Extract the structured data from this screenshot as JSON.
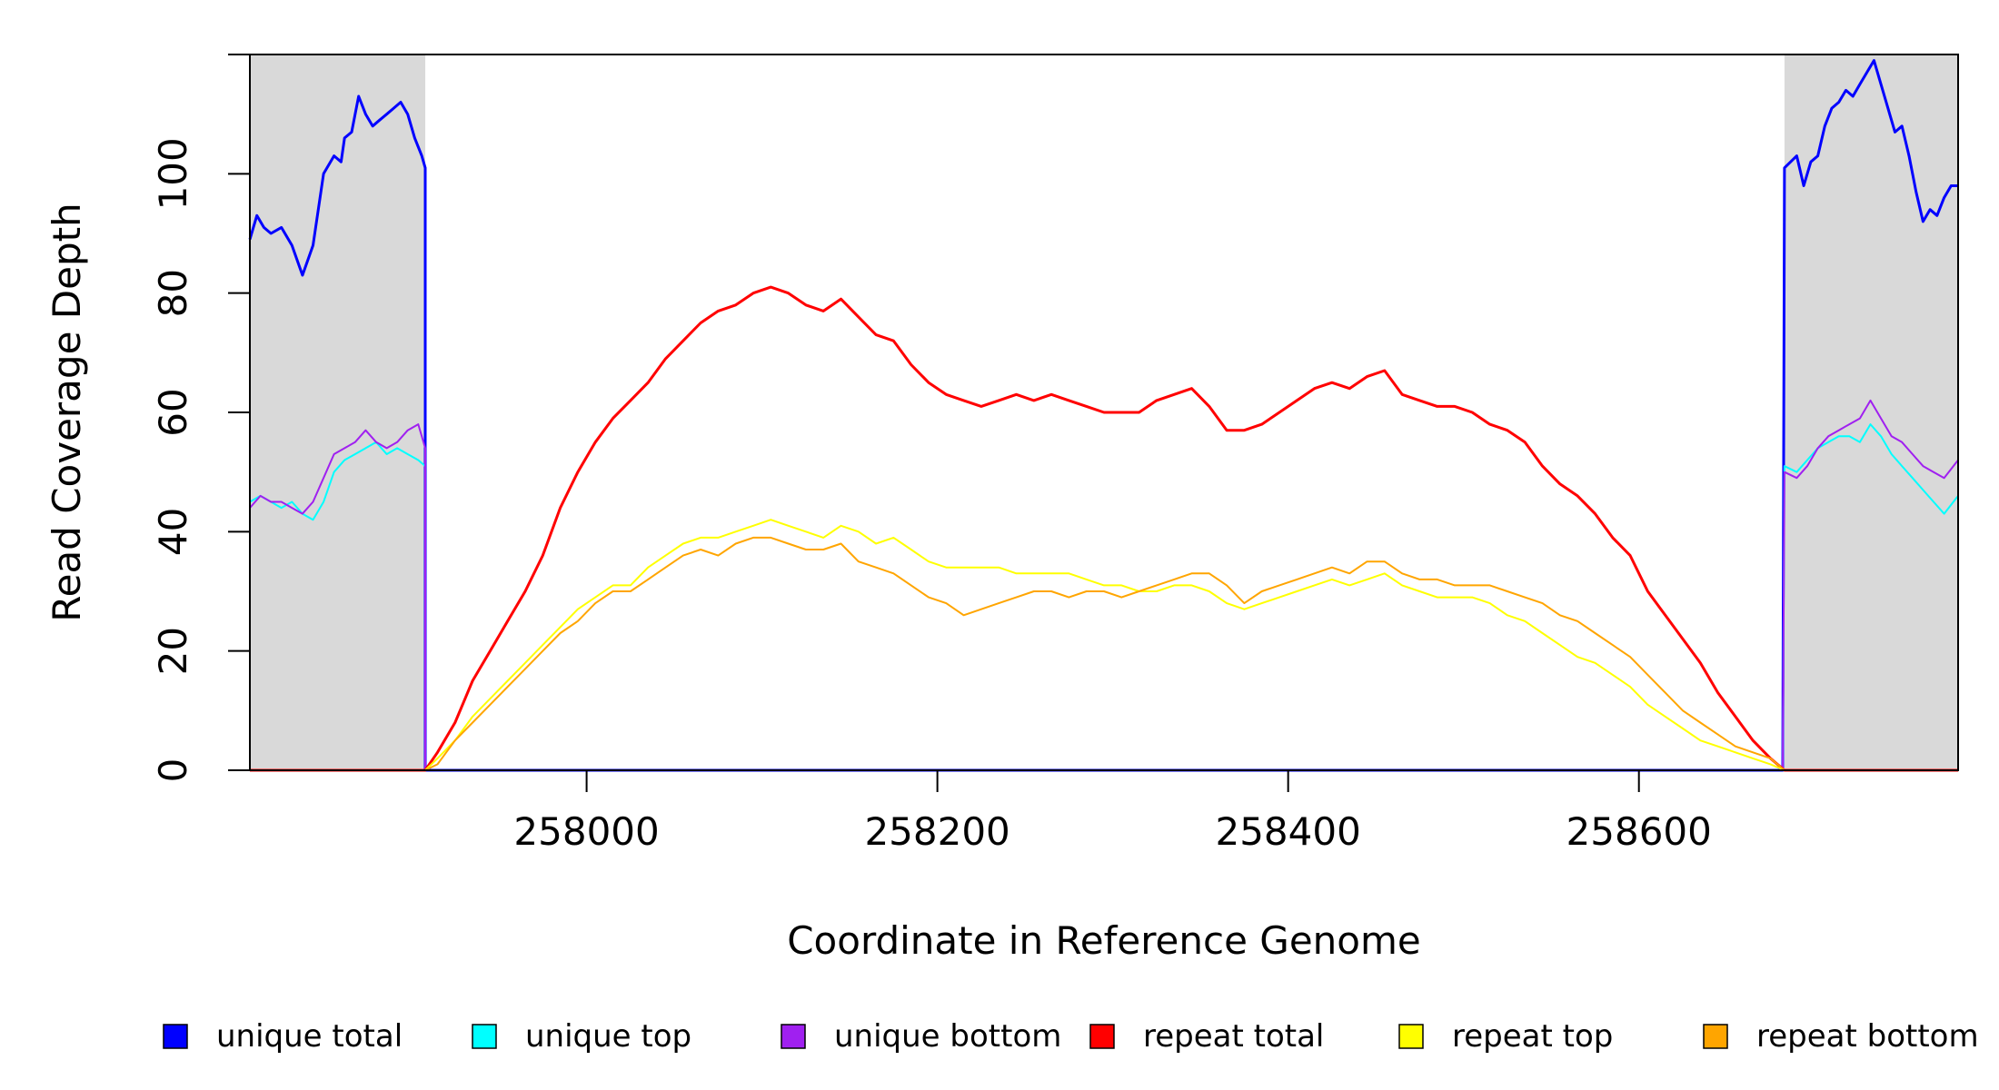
{
  "chart_data": {
    "type": "line",
    "xlabel": "Coordinate in Reference Genome",
    "ylabel": "Read Coverage Depth",
    "xlim": [
      257808,
      258782
    ],
    "ylim": [
      0,
      120
    ],
    "x_ticks": [
      258000,
      258200,
      258400,
      258600
    ],
    "y_ticks": [
      0,
      20,
      40,
      60,
      80,
      100
    ],
    "grid": false,
    "legend_position": "bottom",
    "shaded_regions": [
      {
        "x_start": 257808,
        "x_end": 257908,
        "color": "#d9d9d9"
      },
      {
        "x_start": 258683,
        "x_end": 258782,
        "color": "#d9d9d9"
      }
    ],
    "series": [
      {
        "name": "unique total",
        "color": "#0000ff",
        "stroke_width": 3,
        "x": [
          257808,
          257812,
          257816,
          257820,
          257826,
          257832,
          257838,
          257844,
          257850,
          257856,
          257860,
          257862,
          257866,
          257870,
          257874,
          257878,
          257882,
          257886,
          257890,
          257894,
          257898,
          257902,
          257906,
          257908,
          257908,
          258682,
          258683,
          258690,
          258694,
          258698,
          258702,
          258706,
          258710,
          258714,
          258718,
          258722,
          258726,
          258730,
          258734,
          258738,
          258742,
          258746,
          258750,
          258754,
          258758,
          258762,
          258766,
          258770,
          258774,
          258778,
          258782
        ],
        "y": [
          89,
          93,
          91,
          90,
          91,
          88,
          83,
          88,
          100,
          103,
          102,
          106,
          107,
          113,
          110,
          108,
          109,
          110,
          111,
          112,
          110,
          106,
          103,
          101,
          0,
          0,
          101,
          103,
          98,
          102,
          103,
          108,
          111,
          112,
          114,
          113,
          115,
          117,
          119,
          115,
          111,
          107,
          108,
          103,
          97,
          92,
          94,
          93,
          96,
          98,
          98
        ]
      },
      {
        "name": "unique top",
        "color": "#00ffff",
        "stroke_width": 2,
        "x": [
          257808,
          257814,
          257820,
          257826,
          257832,
          257838,
          257844,
          257850,
          257856,
          257862,
          257868,
          257874,
          257880,
          257886,
          257892,
          257898,
          257904,
          257908,
          257908,
          258682,
          258683,
          258690,
          258696,
          258702,
          258708,
          258714,
          258720,
          258726,
          258732,
          258738,
          258744,
          258750,
          258756,
          258762,
          258768,
          258774,
          258782
        ],
        "y": [
          45,
          46,
          45,
          44,
          45,
          43,
          42,
          45,
          50,
          52,
          53,
          54,
          55,
          53,
          54,
          53,
          52,
          51,
          0,
          0,
          51,
          50,
          52,
          54,
          55,
          56,
          56,
          55,
          58,
          56,
          53,
          51,
          49,
          47,
          45,
          43,
          46
        ]
      },
      {
        "name": "unique bottom",
        "color": "#a020f0",
        "stroke_width": 2,
        "x": [
          257808,
          257814,
          257820,
          257826,
          257832,
          257838,
          257844,
          257850,
          257856,
          257862,
          257868,
          257874,
          257880,
          257886,
          257892,
          257898,
          257904,
          257908,
          257908,
          258682,
          258683,
          258690,
          258696,
          258702,
          258708,
          258714,
          258720,
          258726,
          258732,
          258738,
          258744,
          258750,
          258756,
          258762,
          258768,
          258774,
          258782
        ],
        "y": [
          44,
          46,
          45,
          45,
          44,
          43,
          45,
          49,
          53,
          54,
          55,
          57,
          55,
          54,
          55,
          57,
          58,
          54,
          0,
          0,
          50,
          49,
          51,
          54,
          56,
          57,
          58,
          59,
          62,
          59,
          56,
          55,
          53,
          51,
          50,
          49,
          52
        ]
      },
      {
        "name": "repeat total",
        "color": "#ff0000",
        "stroke_width": 3,
        "x": [
          257808,
          257908,
          257915,
          257925,
          257935,
          257945,
          257955,
          257965,
          257975,
          257985,
          257995,
          258005,
          258015,
          258025,
          258035,
          258045,
          258055,
          258065,
          258075,
          258085,
          258095,
          258105,
          258115,
          258125,
          258135,
          258145,
          258155,
          258165,
          258175,
          258185,
          258195,
          258205,
          258215,
          258225,
          258235,
          258245,
          258255,
          258265,
          258275,
          258285,
          258295,
          258305,
          258315,
          258325,
          258335,
          258345,
          258355,
          258365,
          258375,
          258385,
          258395,
          258405,
          258415,
          258425,
          258435,
          258445,
          258455,
          258465,
          258475,
          258485,
          258495,
          258505,
          258515,
          258525,
          258535,
          258545,
          258555,
          258565,
          258575,
          258585,
          258595,
          258605,
          258615,
          258625,
          258635,
          258645,
          258655,
          258665,
          258675,
          258683,
          258782
        ],
        "y": [
          0,
          0,
          3,
          8,
          15,
          20,
          25,
          30,
          36,
          44,
          50,
          55,
          59,
          62,
          65,
          69,
          72,
          75,
          77,
          78,
          80,
          81,
          80,
          78,
          77,
          79,
          76,
          73,
          72,
          68,
          65,
          63,
          62,
          61,
          62,
          63,
          62,
          63,
          62,
          61,
          60,
          60,
          60,
          62,
          63,
          64,
          61,
          57,
          57,
          58,
          60,
          62,
          64,
          65,
          64,
          66,
          67,
          63,
          62,
          61,
          61,
          60,
          58,
          57,
          55,
          51,
          48,
          46,
          43,
          39,
          36,
          30,
          26,
          22,
          18,
          13,
          9,
          5,
          2,
          0,
          0
        ]
      },
      {
        "name": "repeat top",
        "color": "#ffff00",
        "stroke_width": 2,
        "x": [
          257808,
          257908,
          257915,
          257925,
          257935,
          257945,
          257955,
          257965,
          257975,
          257985,
          257995,
          258005,
          258015,
          258025,
          258035,
          258045,
          258055,
          258065,
          258075,
          258085,
          258095,
          258105,
          258115,
          258125,
          258135,
          258145,
          258155,
          258165,
          258175,
          258185,
          258195,
          258205,
          258215,
          258225,
          258235,
          258245,
          258255,
          258265,
          258275,
          258285,
          258295,
          258305,
          258315,
          258325,
          258335,
          258345,
          258355,
          258365,
          258375,
          258385,
          258395,
          258405,
          258415,
          258425,
          258435,
          258445,
          258455,
          258465,
          258475,
          258485,
          258495,
          258505,
          258515,
          258525,
          258535,
          258545,
          258555,
          258565,
          258575,
          258585,
          258595,
          258605,
          258615,
          258625,
          258635,
          258645,
          258655,
          258665,
          258675,
          258683,
          258782
        ],
        "y": [
          0,
          0,
          2,
          5,
          9,
          12,
          15,
          18,
          21,
          24,
          27,
          29,
          31,
          31,
          34,
          36,
          38,
          39,
          39,
          40,
          41,
          42,
          41,
          40,
          39,
          41,
          40,
          38,
          39,
          37,
          35,
          34,
          34,
          34,
          34,
          33,
          33,
          33,
          33,
          32,
          31,
          31,
          30,
          30,
          31,
          31,
          30,
          28,
          27,
          28,
          29,
          30,
          31,
          32,
          31,
          32,
          33,
          31,
          30,
          29,
          29,
          29,
          28,
          26,
          25,
          23,
          21,
          19,
          18,
          16,
          14,
          11,
          9,
          7,
          5,
          4,
          3,
          2,
          1,
          0,
          0
        ]
      },
      {
        "name": "repeat bottom",
        "color": "#ffa500",
        "stroke_width": 2,
        "x": [
          257808,
          257908,
          257915,
          257925,
          257935,
          257945,
          257955,
          257965,
          257975,
          257985,
          257995,
          258005,
          258015,
          258025,
          258035,
          258045,
          258055,
          258065,
          258075,
          258085,
          258095,
          258105,
          258115,
          258125,
          258135,
          258145,
          258155,
          258165,
          258175,
          258185,
          258195,
          258205,
          258215,
          258225,
          258235,
          258245,
          258255,
          258265,
          258275,
          258285,
          258295,
          258305,
          258315,
          258325,
          258335,
          258345,
          258355,
          258365,
          258375,
          258385,
          258395,
          258405,
          258415,
          258425,
          258435,
          258445,
          258455,
          258465,
          258475,
          258485,
          258495,
          258505,
          258515,
          258525,
          258535,
          258545,
          258555,
          258565,
          258575,
          258585,
          258595,
          258605,
          258615,
          258625,
          258635,
          258645,
          258655,
          258665,
          258675,
          258683,
          258782
        ],
        "y": [
          0,
          0,
          1,
          5,
          8,
          11,
          14,
          17,
          20,
          23,
          25,
          28,
          30,
          30,
          32,
          34,
          36,
          37,
          36,
          38,
          39,
          39,
          38,
          37,
          37,
          38,
          35,
          34,
          33,
          31,
          29,
          28,
          26,
          27,
          28,
          29,
          30,
          30,
          29,
          30,
          30,
          29,
          30,
          31,
          32,
          33,
          33,
          31,
          28,
          30,
          31,
          32,
          33,
          34,
          33,
          35,
          35,
          33,
          32,
          32,
          31,
          31,
          31,
          30,
          29,
          28,
          26,
          25,
          23,
          21,
          19,
          16,
          13,
          10,
          8,
          6,
          4,
          3,
          2,
          0,
          0
        ]
      }
    ]
  }
}
